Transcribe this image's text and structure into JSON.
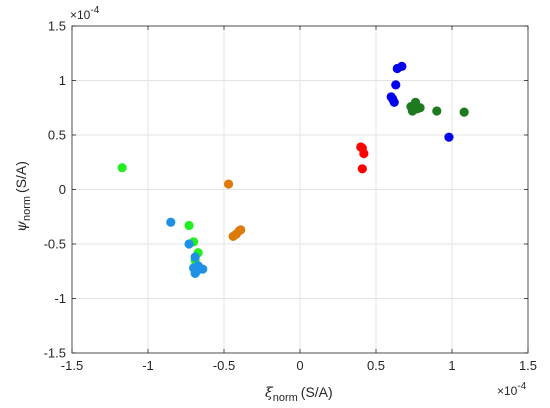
{
  "chart_data": {
    "type": "scatter",
    "title": "",
    "xlim": [
      -1.5,
      1.5
    ],
    "ylim": [
      -1.5,
      1.5
    ],
    "xticks": [
      "-1.5",
      "-1",
      "-0.5",
      "0",
      "0.5",
      "1",
      "1.5"
    ],
    "yticks": [
      "-1.5",
      "-1",
      "-0.5",
      "0",
      "0.5",
      "1",
      "1.5"
    ],
    "x_tick_values": [
      -1.5,
      -1,
      -0.5,
      0,
      0.5,
      1,
      1.5
    ],
    "y_tick_values": [
      -1.5,
      -1,
      -0.5,
      0,
      0.5,
      1,
      1.5
    ],
    "x_exponent": {
      "base": "×10",
      "power": "-4"
    },
    "y_exponent": {
      "base": "×10",
      "power": "-4"
    },
    "xlabel": {
      "symbol": "ξ",
      "subscript": "norm",
      "unit": "(S/A)"
    },
    "ylabel": {
      "symbol": "ψ",
      "subscript": "norm",
      "unit": "(S/A)"
    },
    "grid": true,
    "series": [
      {
        "color": "#0000ee",
        "points": [
          [
            0.6,
            0.85
          ],
          [
            0.61,
            0.83
          ],
          [
            0.62,
            0.8
          ],
          [
            0.63,
            0.96
          ],
          [
            0.64,
            1.11
          ],
          [
            0.67,
            1.13
          ],
          [
            0.98,
            0.48
          ]
        ]
      },
      {
        "color": "#1e7a1e",
        "points": [
          [
            0.73,
            0.76
          ],
          [
            0.74,
            0.72
          ],
          [
            0.76,
            0.8
          ],
          [
            0.77,
            0.74
          ],
          [
            0.79,
            0.75
          ],
          [
            0.9,
            0.72
          ],
          [
            1.08,
            0.71
          ]
        ]
      },
      {
        "color": "#ff0000",
        "points": [
          [
            0.4,
            0.39
          ],
          [
            0.41,
            0.38
          ],
          [
            0.42,
            0.33
          ],
          [
            0.41,
            0.19
          ]
        ]
      },
      {
        "color": "#dd7a0a",
        "points": [
          [
            -0.47,
            0.05
          ],
          [
            -0.39,
            -0.37
          ],
          [
            -0.4,
            -0.38
          ],
          [
            -0.42,
            -0.41
          ],
          [
            -0.44,
            -0.43
          ]
        ]
      },
      {
        "color": "#22ee22",
        "points": [
          [
            -1.17,
            0.2
          ],
          [
            -0.73,
            -0.33
          ],
          [
            -0.7,
            -0.48
          ],
          [
            -0.67,
            -0.58
          ],
          [
            -0.69,
            -0.65
          ]
        ]
      },
      {
        "color": "#1e90e6",
        "points": [
          [
            -0.85,
            -0.3
          ],
          [
            -0.73,
            -0.5
          ],
          [
            -0.69,
            -0.62
          ],
          [
            -0.67,
            -0.7
          ],
          [
            -0.64,
            -0.73
          ],
          [
            -0.7,
            -0.72
          ],
          [
            -0.69,
            -0.77
          ],
          [
            -0.68,
            -0.75
          ]
        ]
      }
    ]
  }
}
